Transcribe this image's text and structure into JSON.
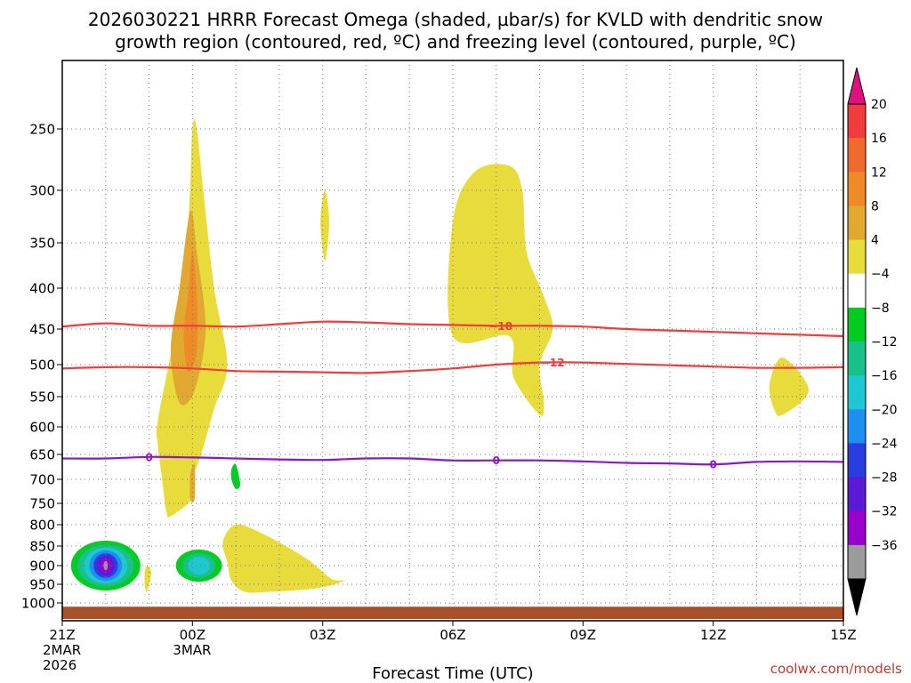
{
  "chart_data": {
    "type": "heatmap",
    "title_line1": "2026030221 HRRR Forecast Omega (shaded, µbar/s) for KVLD with dendritic snow",
    "title_line2": "growth region (contoured, red, ºC) and freezing level (contoured, purple, ºC)",
    "xlabel": "Forecast Time (UTC)",
    "credit": "coolwx.com/models",
    "x_range_hours": [
      0,
      18
    ],
    "x_ticks": [
      {
        "hour": 0,
        "label": "21Z",
        "sub1": "2MAR",
        "sub2": "2026"
      },
      {
        "hour": 3,
        "label": "00Z",
        "sub1": "3MAR",
        "sub2": ""
      },
      {
        "hour": 6,
        "label": "03Z",
        "sub1": "",
        "sub2": ""
      },
      {
        "hour": 9,
        "label": "06Z",
        "sub1": "",
        "sub2": ""
      },
      {
        "hour": 12,
        "label": "09Z",
        "sub1": "",
        "sub2": ""
      },
      {
        "hour": 15,
        "label": "12Z",
        "sub1": "",
        "sub2": ""
      },
      {
        "hour": 18,
        "label": "15Z",
        "sub1": "",
        "sub2": ""
      }
    ],
    "y_ticks": [
      {
        "p": 250,
        "label": "250"
      },
      {
        "p": 300,
        "label": "300"
      },
      {
        "p": 350,
        "label": "350"
      },
      {
        "p": 400,
        "label": "400"
      },
      {
        "p": 450,
        "label": "450"
      },
      {
        "p": 500,
        "label": "500"
      },
      {
        "p": 550,
        "label": "550"
      },
      {
        "p": 600,
        "label": "600"
      },
      {
        "p": 650,
        "label": "650"
      },
      {
        "p": 700,
        "label": "700"
      },
      {
        "p": 750,
        "label": "750"
      },
      {
        "p": 800,
        "label": "800"
      },
      {
        "p": 850,
        "label": "850"
      },
      {
        "p": 900,
        "label": "900"
      },
      {
        "p": 950,
        "label": "950"
      },
      {
        "p": 1000,
        "label": "1000"
      }
    ],
    "colorbar": {
      "bands": [
        {
          "color": "#9b9b9b"
        },
        {
          "color": "#9900cc"
        },
        {
          "color": "#5a1ad6"
        },
        {
          "color": "#2a3de0"
        },
        {
          "color": "#1e8ff0"
        },
        {
          "color": "#1ec8d0"
        },
        {
          "color": "#18c08a"
        },
        {
          "color": "#00cc22"
        },
        {
          "color": "#ffffff"
        },
        {
          "color": "#e8dc3c"
        },
        {
          "color": "#e2a930"
        },
        {
          "color": "#ee8a28"
        },
        {
          "color": "#f06a2e"
        },
        {
          "color": "#f03c3c"
        }
      ],
      "top_color": "#e0117e",
      "bottom_color": "#000000",
      "labels": [
        "20",
        "16",
        "12",
        "8",
        "4",
        "−4",
        "−8",
        "−12",
        "−16",
        "−20",
        "−24",
        "−28",
        "−32",
        "−36"
      ]
    },
    "omega_regions": [
      {
        "name": "upper-plume",
        "color": "#e8dc3c",
        "points": [
          [
            2.2,
            590
          ],
          [
            2.6,
            450
          ],
          [
            2.9,
            330
          ],
          [
            3.0,
            250
          ],
          [
            3.1,
            250
          ],
          [
            3.25,
            300
          ],
          [
            3.5,
            400
          ],
          [
            3.8,
            500
          ],
          [
            3.5,
            570
          ],
          [
            3.2,
            650
          ],
          [
            3.0,
            700
          ],
          [
            3.0,
            740
          ],
          [
            2.5,
            780
          ],
          [
            2.4,
            770
          ],
          [
            2.3,
            700
          ],
          [
            2.2,
            630
          ]
        ]
      },
      {
        "name": "upper-plume-core",
        "color": "#e2a930",
        "points": [
          [
            2.5,
            480
          ],
          [
            2.7,
            400
          ],
          [
            2.95,
            320
          ],
          [
            3.1,
            360
          ],
          [
            3.3,
            450
          ],
          [
            3.05,
            540
          ],
          [
            2.7,
            560
          ]
        ]
      },
      {
        "name": "upper-plume-max",
        "color": "#ee8a28",
        "points": [
          [
            2.8,
            450
          ],
          [
            2.9,
            410
          ],
          [
            3.0,
            360
          ],
          [
            3.1,
            410
          ],
          [
            3.1,
            480
          ],
          [
            2.95,
            510
          ],
          [
            2.85,
            500
          ]
        ]
      },
      {
        "name": "mid-blob-0z",
        "color": "#e2a930",
        "points": [
          [
            2.95,
            690
          ],
          [
            3.05,
            670
          ],
          [
            3.05,
            740
          ],
          [
            2.95,
            740
          ]
        ]
      },
      {
        "name": "blob-04z",
        "color": "#e8dc3c",
        "points": [
          [
            5.95,
            330
          ],
          [
            6.05,
            300
          ],
          [
            6.15,
            330
          ],
          [
            6.05,
            370
          ]
        ]
      },
      {
        "name": "plume-07z",
        "color": "#e8dc3c",
        "points": [
          [
            9.0,
            460
          ],
          [
            9.0,
            330
          ],
          [
            9.5,
            285
          ],
          [
            10.3,
            280
          ],
          [
            10.6,
            300
          ],
          [
            10.7,
            360
          ],
          [
            11.1,
            410
          ],
          [
            11.3,
            450
          ],
          [
            11.0,
            500
          ],
          [
            11.1,
            560
          ],
          [
            11.0,
            580
          ],
          [
            10.4,
            520
          ],
          [
            10.3,
            460
          ]
        ]
      },
      {
        "name": "low-level-01z",
        "color": "#e8dc3c",
        "points": [
          [
            3.7,
            840
          ],
          [
            4.0,
            800
          ],
          [
            4.6,
            820
          ],
          [
            5.6,
            880
          ],
          [
            6.2,
            935
          ],
          [
            6.5,
            940
          ],
          [
            5.9,
            960
          ],
          [
            4.8,
            970
          ],
          [
            4.2,
            970
          ],
          [
            3.9,
            940
          ],
          [
            3.8,
            890
          ]
        ]
      },
      {
        "name": "blob-1230z",
        "color": "#e8dc3c",
        "points": [
          [
            16.3,
            530
          ],
          [
            16.6,
            490
          ],
          [
            17.2,
            540
          ],
          [
            16.6,
            580
          ],
          [
            16.4,
            570
          ]
        ]
      },
      {
        "name": "tiny-2230z",
        "color": "#e8dc3c",
        "points": [
          [
            1.9,
            920
          ],
          [
            1.95,
            900
          ],
          [
            2.05,
            920
          ],
          [
            1.95,
            970
          ],
          [
            1.9,
            950
          ]
        ]
      },
      {
        "name": "tiny-green-01z",
        "color": "#00cc22",
        "points": [
          [
            3.9,
            680
          ],
          [
            4.0,
            670
          ],
          [
            4.1,
            710
          ],
          [
            4.0,
            720
          ],
          [
            3.9,
            700
          ]
        ]
      }
    ],
    "omega_blobs": [
      {
        "name": "sink-2130z",
        "hour": 1.0,
        "p": 900,
        "levels": [
          {
            "color": "#00cc22",
            "rx_h": 0.8,
            "ry_p": 120
          },
          {
            "color": "#18c08a",
            "rx_h": 0.65,
            "ry_p": 100
          },
          {
            "color": "#1ec8d0",
            "rx_h": 0.5,
            "ry_p": 85
          },
          {
            "color": "#1e8ff0",
            "rx_h": 0.38,
            "ry_p": 70
          },
          {
            "color": "#2a3de0",
            "rx_h": 0.28,
            "ry_p": 55
          },
          {
            "color": "#5a1ad6",
            "rx_h": 0.2,
            "ry_p": 42
          },
          {
            "color": "#9900cc",
            "rx_h": 0.13,
            "ry_p": 30
          },
          {
            "color": "#9b9b9b",
            "rx_h": 0.05,
            "ry_p": 15
          }
        ]
      },
      {
        "name": "sink-2330z",
        "hour": 3.15,
        "p": 900,
        "levels": [
          {
            "color": "#00cc22",
            "rx_h": 0.53,
            "ry_p": 75
          },
          {
            "color": "#18c08a",
            "rx_h": 0.38,
            "ry_p": 55
          },
          {
            "color": "#1ec8d0",
            "rx_h": 0.25,
            "ry_p": 38
          }
        ]
      }
    ],
    "contours": [
      {
        "name": "dgz-minus-18",
        "color": "#f03c3c",
        "label": "−18",
        "label_hour": 10.1,
        "points": [
          [
            0,
            447
          ],
          [
            1,
            443
          ],
          [
            2,
            446
          ],
          [
            3,
            446
          ],
          [
            4,
            447
          ],
          [
            5,
            444
          ],
          [
            6,
            441
          ],
          [
            7,
            442
          ],
          [
            8,
            444
          ],
          [
            9,
            445
          ],
          [
            10,
            446
          ],
          [
            11,
            446
          ],
          [
            12,
            447
          ],
          [
            13,
            450
          ],
          [
            14,
            452
          ],
          [
            15,
            454
          ],
          [
            16,
            456
          ],
          [
            17,
            458
          ],
          [
            18,
            460
          ]
        ]
      },
      {
        "name": "dgz-minus-12",
        "color": "#f03c3c",
        "label": "−12",
        "label_hour": 11.3,
        "points": [
          [
            0,
            506
          ],
          [
            1,
            504
          ],
          [
            2,
            504
          ],
          [
            3,
            506
          ],
          [
            4,
            510
          ],
          [
            5,
            511
          ],
          [
            6,
            512
          ],
          [
            7,
            513
          ],
          [
            8,
            510
          ],
          [
            9,
            506
          ],
          [
            10,
            500
          ],
          [
            11,
            497
          ],
          [
            12,
            497
          ],
          [
            13,
            499
          ],
          [
            14,
            501
          ],
          [
            15,
            503
          ],
          [
            16,
            505
          ],
          [
            17,
            505
          ],
          [
            18,
            504
          ]
        ]
      },
      {
        "name": "freezing-level-0",
        "color": "#8a18c8",
        "label": "0",
        "label_hours": [
          2,
          10,
          15
        ],
        "points": [
          [
            0,
            658
          ],
          [
            1,
            658
          ],
          [
            2,
            655
          ],
          [
            3,
            656
          ],
          [
            4,
            658
          ],
          [
            5,
            660
          ],
          [
            6,
            661
          ],
          [
            7,
            658
          ],
          [
            8,
            658
          ],
          [
            9,
            662
          ],
          [
            10,
            662
          ],
          [
            11,
            662
          ],
          [
            12,
            664
          ],
          [
            13,
            667
          ],
          [
            14,
            668
          ],
          [
            15,
            670
          ],
          [
            16,
            665
          ],
          [
            17,
            664
          ],
          [
            18,
            665
          ]
        ]
      }
    ],
    "terrain": {
      "color": "#a9512b",
      "p_top": 1010
    }
  }
}
